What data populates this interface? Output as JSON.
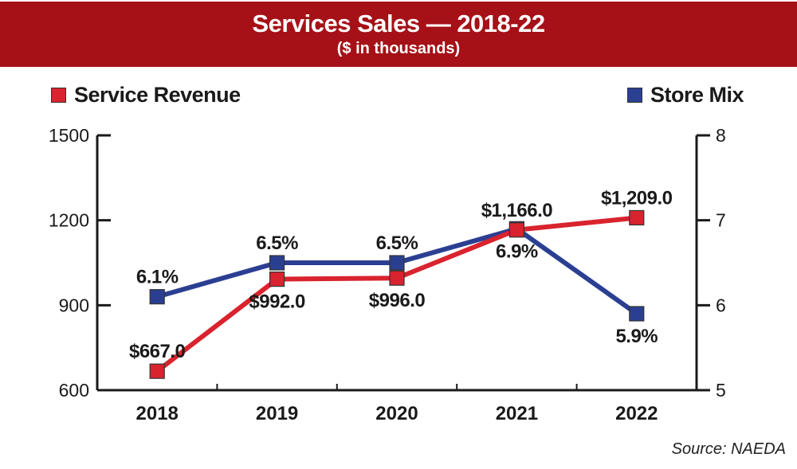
{
  "header": {
    "title": "Services Sales — 2018-22",
    "subtitle": "($ in thousands)"
  },
  "legend": [
    {
      "label": "Service Revenue",
      "color": "#d9232e"
    },
    {
      "label": "Store Mix",
      "color": "#2b3f92"
    }
  ],
  "source": "Source: NAEDA",
  "chart_data": {
    "type": "line",
    "title": "Services Sales — 2018-22",
    "subtitle": "($ in thousands)",
    "categories": [
      "2018",
      "2019",
      "2020",
      "2021",
      "2022"
    ],
    "series": [
      {
        "name": "Service Revenue",
        "axis": "left",
        "color": "#d9232e",
        "values": [
          667.0,
          992.0,
          996.0,
          1166.0,
          1209.0
        ],
        "labels": [
          "$667.0",
          "$992.0",
          "$996.0",
          "$1,166.0",
          "$1,209.0"
        ],
        "label_positions": [
          "above",
          "below",
          "below",
          "above",
          "above"
        ]
      },
      {
        "name": "Store Mix",
        "axis": "right",
        "color": "#2b3f92",
        "values": [
          6.1,
          6.5,
          6.5,
          6.9,
          5.9
        ],
        "labels": [
          "6.1%",
          "6.5%",
          "6.5%",
          "6.9%",
          "5.9%"
        ],
        "label_positions": [
          "above",
          "above",
          "above",
          "below",
          "below"
        ]
      }
    ],
    "left_axis": {
      "ylim": [
        600,
        1500
      ],
      "ticks": [
        600,
        900,
        1200,
        1500
      ]
    },
    "right_axis": {
      "ylim": [
        5,
        8
      ],
      "ticks": [
        5,
        6,
        7,
        8
      ]
    },
    "xlabel": "",
    "ylabel": "",
    "grid": false,
    "legend": "top"
  }
}
